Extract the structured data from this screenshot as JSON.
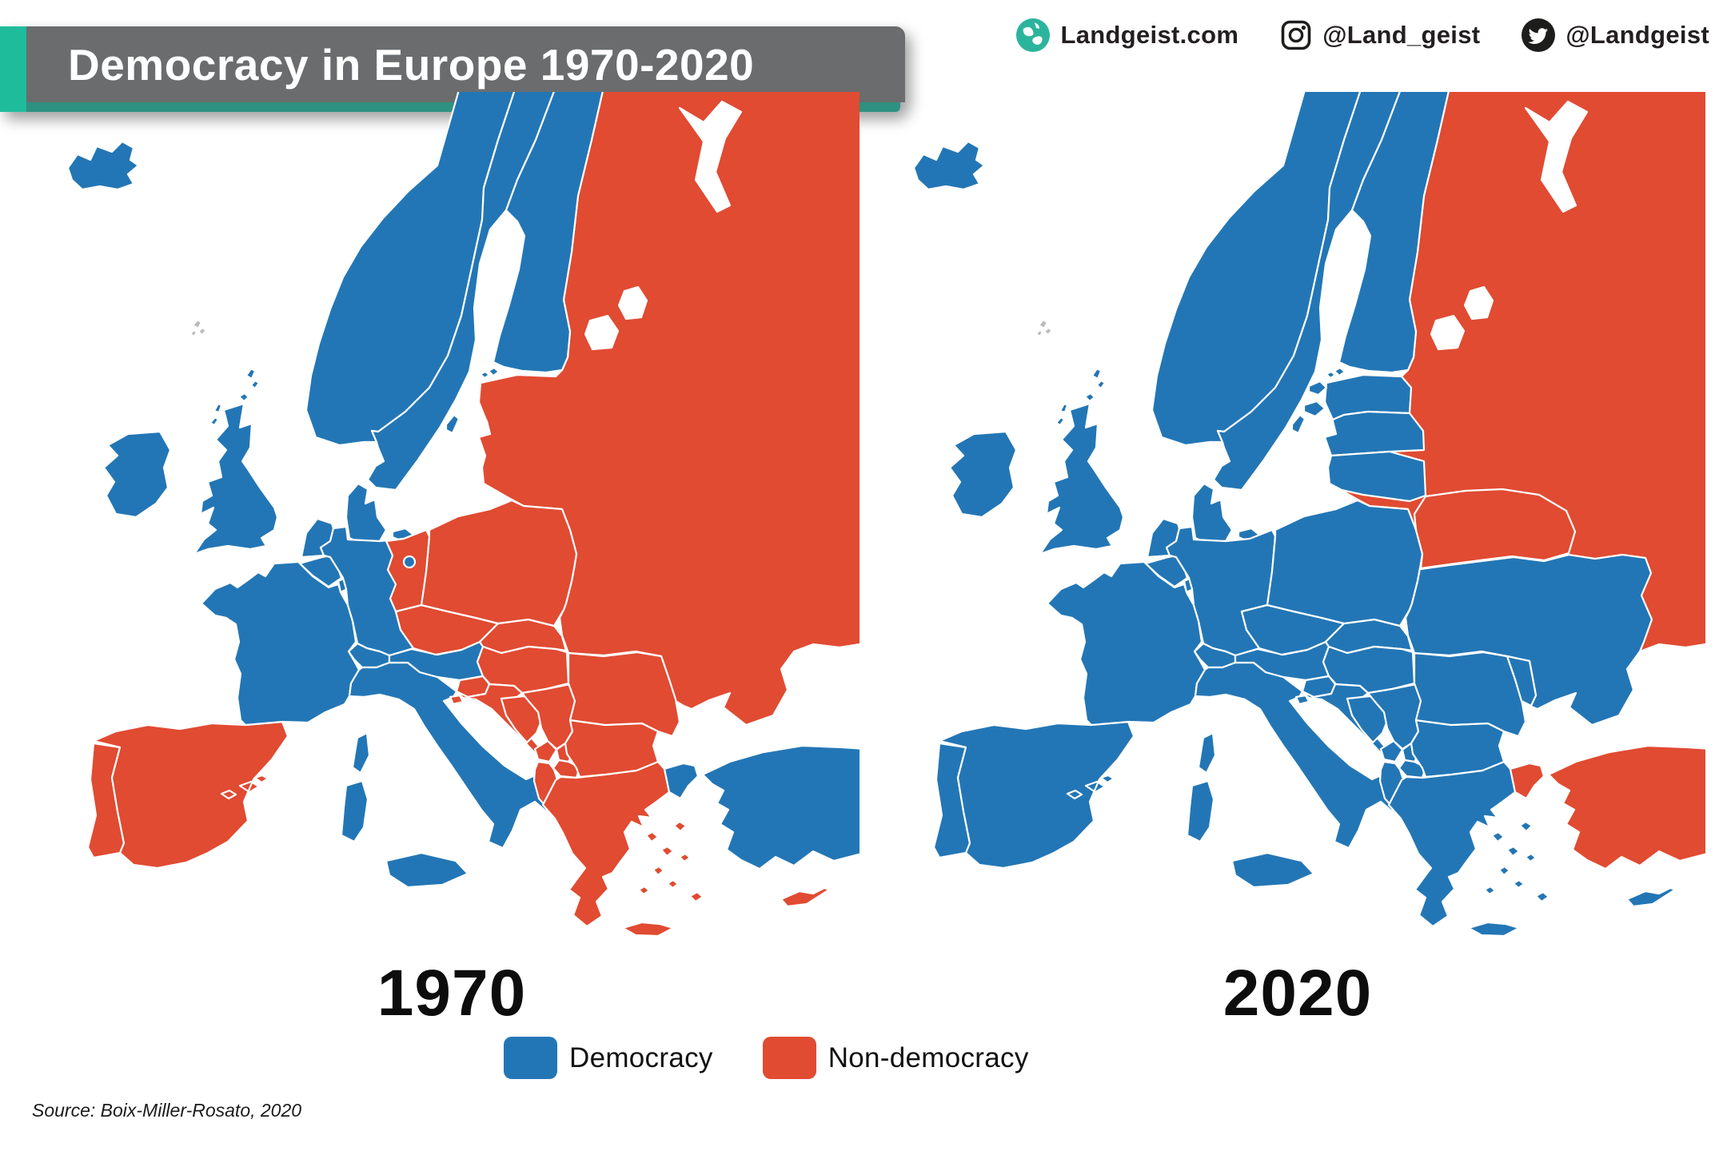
{
  "header": {
    "title": "Democracy in Europe 1970-2020",
    "accent_color": "#1fbc9c",
    "underline_color": "#2e9181",
    "banner_color": "#6a6c6e"
  },
  "brand": {
    "website": "Landgeist.com",
    "instagram_handle": "@Land_geist",
    "twitter_handle": "@Landgeist"
  },
  "legend": [
    {
      "label": "Democracy",
      "color": "#2376b5",
      "key": "dem"
    },
    {
      "label": "Non-democracy",
      "color": "#e04b32",
      "key": "non"
    }
  ],
  "source": "Source: Boix-Miller-Rosato, 2020",
  "map_data": {
    "type": "choropleth",
    "status_colors": {
      "dem": "#2376b5",
      "non": "#e04b32",
      "sea": "#ffffff",
      "unclassified": "#b9bbbd"
    },
    "years": [
      {
        "year": "1970",
        "statuses": {
          "russia": "non",
          "white-sea": "sea",
          "lakes": "sea",
          "iceland": "dem",
          "faroe": "unclassified",
          "norway": "dem",
          "sweden": "dem",
          "finland": "dem",
          "denmark": "dem",
          "uk": "dem",
          "ireland": "dem",
          "portugal": "non",
          "spain": "non",
          "france": "dem",
          "netherlands": "dem",
          "belgium": "dem",
          "luxembourg": "dem",
          "germany": "dem",
          "switzerland": "dem",
          "italy": "dem",
          "austria": "dem",
          "czechia": "non",
          "slovakia": "non",
          "poland": "non",
          "hungary": "non",
          "slovenia": "non",
          "croatia": "non",
          "bosnia": "non",
          "serbia": "non",
          "montenegro": "non",
          "kosovo": "non",
          "north-macedonia": "non",
          "albania": "non",
          "greece": "non",
          "bulgaria": "non",
          "romania": "non",
          "turkey": "dem",
          "cyprus": "non",
          "east-germany": "non",
          "west-berlin": "dem"
        }
      },
      {
        "year": "2020",
        "statuses": {
          "russia": "non",
          "white-sea": "sea",
          "lakes": "sea",
          "iceland": "dem",
          "faroe": "unclassified",
          "norway": "dem",
          "sweden": "dem",
          "finland": "dem",
          "denmark": "dem",
          "uk": "dem",
          "ireland": "dem",
          "portugal": "dem",
          "spain": "dem",
          "france": "dem",
          "netherlands": "dem",
          "belgium": "dem",
          "luxembourg": "dem",
          "germany": "dem",
          "switzerland": "dem",
          "italy": "dem",
          "austria": "dem",
          "czechia": "dem",
          "slovakia": "dem",
          "poland": "dem",
          "hungary": "dem",
          "slovenia": "dem",
          "croatia": "dem",
          "bosnia": "dem",
          "serbia": "dem",
          "montenegro": "dem",
          "kosovo": "dem",
          "north-macedonia": "dem",
          "albania": "dem",
          "greece": "dem",
          "bulgaria": "dem",
          "romania": "dem",
          "turkey": "non",
          "cyprus": "dem",
          "estonia": "dem",
          "latvia": "dem",
          "lithuania": "dem",
          "belarus": "non",
          "ukraine": "dem",
          "moldova": "dem"
        }
      }
    ]
  }
}
